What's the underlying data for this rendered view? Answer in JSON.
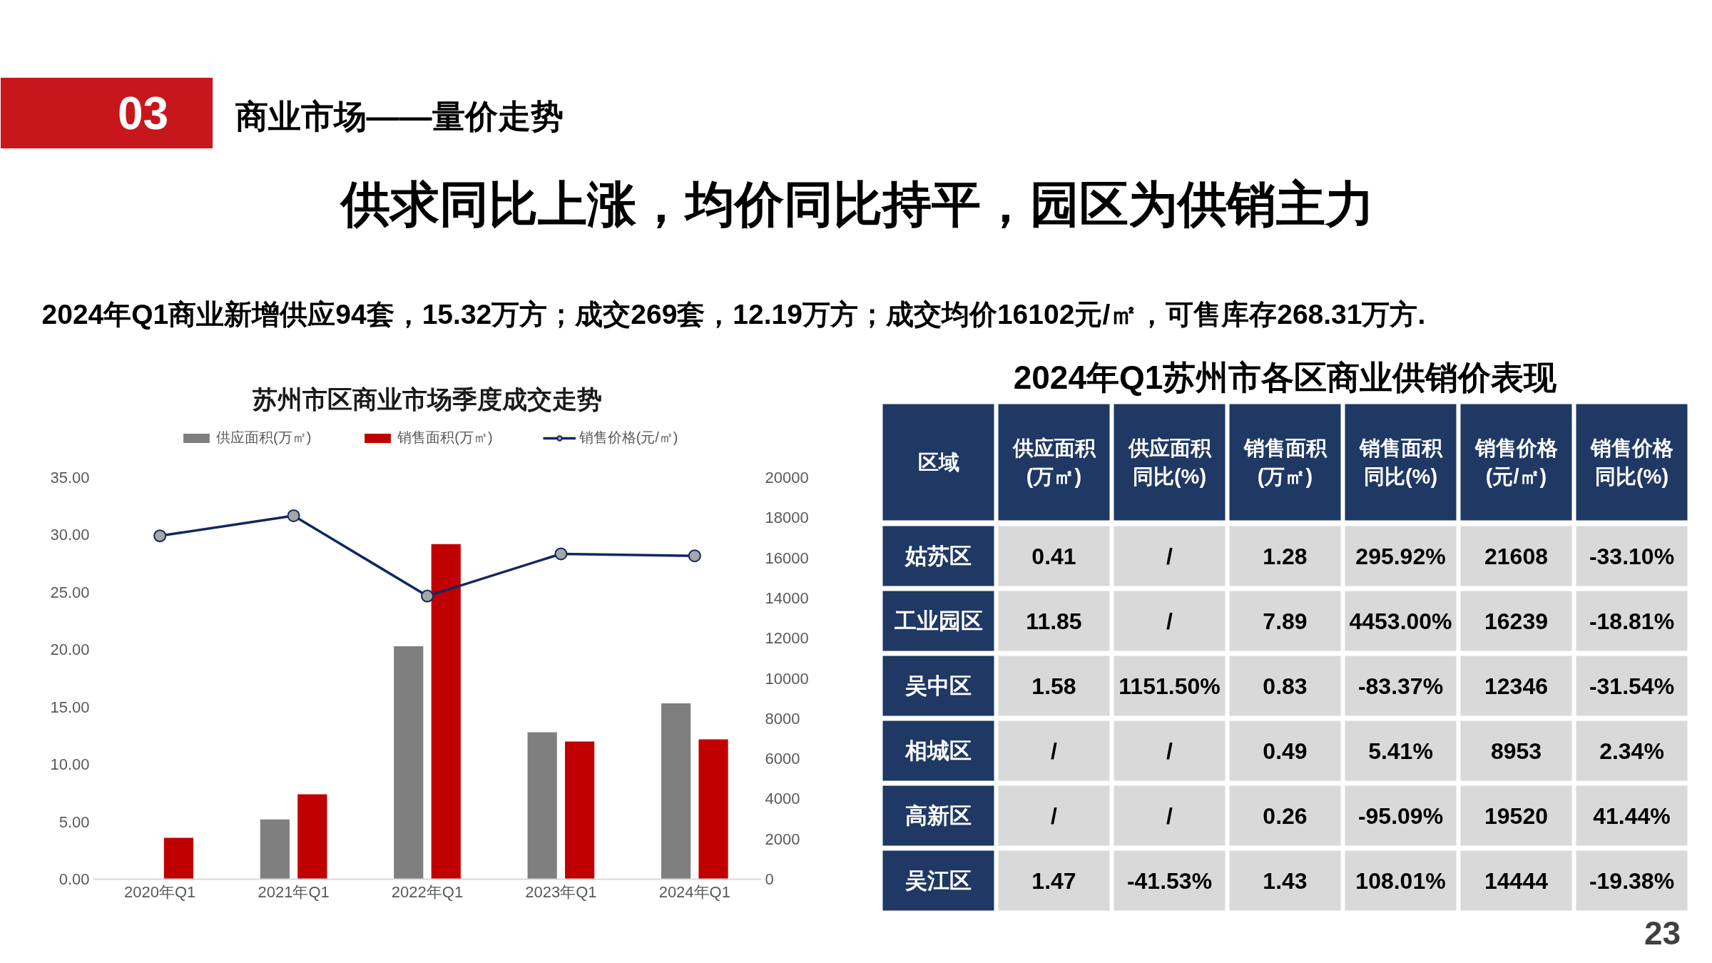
{
  "chart_data": [
    {
      "type": "bar",
      "title": "苏州市区商业市场季度成交走势",
      "categories": [
        "2020年Q1",
        "2021年Q1",
        "2022年Q1",
        "2023年Q1",
        "2024年Q1"
      ],
      "series": [
        {
          "name": "供应面积(万㎡)",
          "color": "#7f7f7f",
          "values": [
            null,
            5.2,
            20.3,
            12.8,
            15.32
          ]
        },
        {
          "name": "销售面积(万㎡)",
          "color": "#c00000",
          "values": [
            3.6,
            7.4,
            29.2,
            12.0,
            12.19
          ]
        },
        {
          "name": "销售价格(元/㎡)",
          "type": "line",
          "axis": "y2",
          "color": "#0f2862",
          "line_style": "solid",
          "values": [
            17100,
            18100,
            14100,
            16200,
            16102
          ]
        }
      ],
      "ylim": [
        0,
        35
      ],
      "yticks": [
        {
          "value": 0,
          "label": "0.00"
        },
        {
          "value": 5,
          "label": "5.00"
        },
        {
          "value": 10,
          "label": "10.00"
        },
        {
          "value": 15,
          "label": "15.00"
        },
        {
          "value": 20,
          "label": "20.00"
        },
        {
          "value": 25,
          "label": "25.00"
        },
        {
          "value": 30,
          "label": "30.00"
        },
        {
          "value": 35,
          "label": "35.00"
        }
      ],
      "y2lim": [
        0,
        20000
      ],
      "y2ticks": [
        0,
        2000,
        4000,
        6000,
        8000,
        10000,
        12000,
        14000,
        16000,
        18000,
        20000
      ],
      "legend": "top",
      "marker": "circle",
      "annotations": [
        "03",
        "商业市场——量价走势",
        "供求同比上涨，均价同比持平，园区为供销主力",
        "2024年Q1商业新增供应94套，15.32万方；成交269套，12.19万方；成交均价16102元/㎡，可售库存268.31万方.",
        "23"
      ]
    },
    {
      "type": "other",
      "title": "2024年Q1苏州市各区商业供销价表现",
      "ylabel": "区域",
      "categories": [
        "供应面积(万㎡)",
        "供应面积同比(%)",
        "销售面积(万㎡)",
        "销售面积同比(%)",
        "销售价格(元/㎡)",
        "销售价格同比(%)"
      ],
      "y_categories": [
        "姑苏区",
        "工业园区",
        "吴中区",
        "相城区",
        "高新区",
        "吴江区"
      ],
      "cell_labels": [
        [
          "0.41",
          "/",
          "1.28",
          "295.92%",
          "21608",
          "-33.10%"
        ],
        [
          "11.85",
          "/",
          "7.89",
          "4453.00%",
          "16239",
          "-18.81%"
        ],
        [
          "1.58",
          "1151.50%",
          "0.83",
          "-83.37%",
          "12346",
          "-31.54%"
        ],
        [
          "/",
          "/",
          "0.49",
          "5.41%",
          "8953",
          "2.34%"
        ],
        [
          "/",
          "/",
          "0.26",
          "-95.09%",
          "19520",
          "41.44%"
        ],
        [
          "1.47",
          "-41.53%",
          "1.43",
          "108.01%",
          "14444",
          "-19.38%"
        ]
      ]
    }
  ]
}
